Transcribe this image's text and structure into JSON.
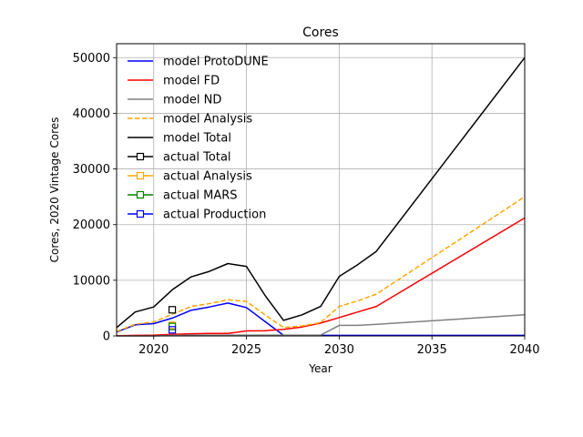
{
  "chart_data": {
    "type": "line",
    "title": "Cores",
    "xlabel": "Year",
    "ylabel": "Cores, 2020 Vintage Cores",
    "xlim": [
      2018,
      2040
    ],
    "ylim": [
      0,
      52500
    ],
    "xticks": [
      2020,
      2025,
      2030,
      2035,
      2040
    ],
    "yticks": [
      0,
      10000,
      20000,
      30000,
      40000,
      50000
    ],
    "grid": true,
    "legend_position": "top-left",
    "series": [
      {
        "name": "model ProtoDUNE",
        "color": "#0000ff",
        "style": "solid",
        "marker": "none",
        "x": [
          2018,
          2019,
          2020,
          2021,
          2022,
          2023,
          2024,
          2025,
          2026,
          2027,
          2028,
          2029,
          2030,
          2031,
          2032,
          2040
        ],
        "y": [
          700,
          2000,
          2200,
          3200,
          4600,
          5200,
          5900,
          5100,
          2600,
          100,
          100,
          100,
          100,
          100,
          100,
          100
        ]
      },
      {
        "name": "model FD",
        "color": "#ff0000",
        "style": "solid",
        "marker": "none",
        "x": [
          2018,
          2019,
          2020,
          2021,
          2022,
          2023,
          2024,
          2025,
          2026,
          2027,
          2028,
          2029,
          2030,
          2031,
          2032,
          2040
        ],
        "y": [
          50,
          100,
          150,
          300,
          400,
          450,
          450,
          900,
          950,
          1200,
          1600,
          2300,
          3300,
          4300,
          5300,
          21200
        ]
      },
      {
        "name": "model ND",
        "color": "#808080",
        "style": "solid",
        "marker": "none",
        "x": [
          2018,
          2019,
          2020,
          2021,
          2022,
          2023,
          2024,
          2025,
          2026,
          2027,
          2028,
          2029,
          2030,
          2031,
          2032,
          2040
        ],
        "y": [
          0,
          0,
          0,
          100,
          150,
          150,
          150,
          150,
          150,
          150,
          150,
          150,
          1900,
          1900,
          2100,
          3800
        ]
      },
      {
        "name": "model Analysis",
        "color": "#ffa500",
        "style": "dashed",
        "marker": "none",
        "x": [
          2018,
          2019,
          2020,
          2021,
          2022,
          2023,
          2024,
          2025,
          2026,
          2027,
          2028,
          2029,
          2030,
          2031,
          2032,
          2040
        ],
        "y": [
          800,
          2100,
          2500,
          3900,
          5300,
          5800,
          6500,
          6200,
          3800,
          1500,
          1800,
          2400,
          5300,
          6300,
          7500,
          25000
        ]
      },
      {
        "name": "model Total",
        "color": "#000000",
        "style": "solid",
        "marker": "none",
        "x": [
          2018,
          2019,
          2020,
          2021,
          2022,
          2023,
          2024,
          2025,
          2026,
          2027,
          2028,
          2029,
          2030,
          2031,
          2032,
          2040
        ],
        "y": [
          1500,
          4300,
          5200,
          8300,
          10600,
          11600,
          13000,
          12500,
          7300,
          2800,
          3800,
          5300,
          10700,
          12800,
          15200,
          50000
        ]
      },
      {
        "name": "actual Total",
        "color": "#000000",
        "style": "solid",
        "marker": "square",
        "x": [
          2021
        ],
        "y": [
          4700
        ]
      },
      {
        "name": "actual Analysis",
        "color": "#ffa500",
        "style": "solid",
        "marker": "square",
        "x": [
          2021
        ],
        "y": [
          1900
        ]
      },
      {
        "name": "actual MARS",
        "color": "#008000",
        "style": "solid",
        "marker": "square",
        "x": [
          2021
        ],
        "y": [
          1700
        ]
      },
      {
        "name": "actual Production",
        "color": "#0000ff",
        "style": "solid",
        "marker": "square",
        "x": [
          2021
        ],
        "y": [
          1100
        ]
      }
    ]
  }
}
